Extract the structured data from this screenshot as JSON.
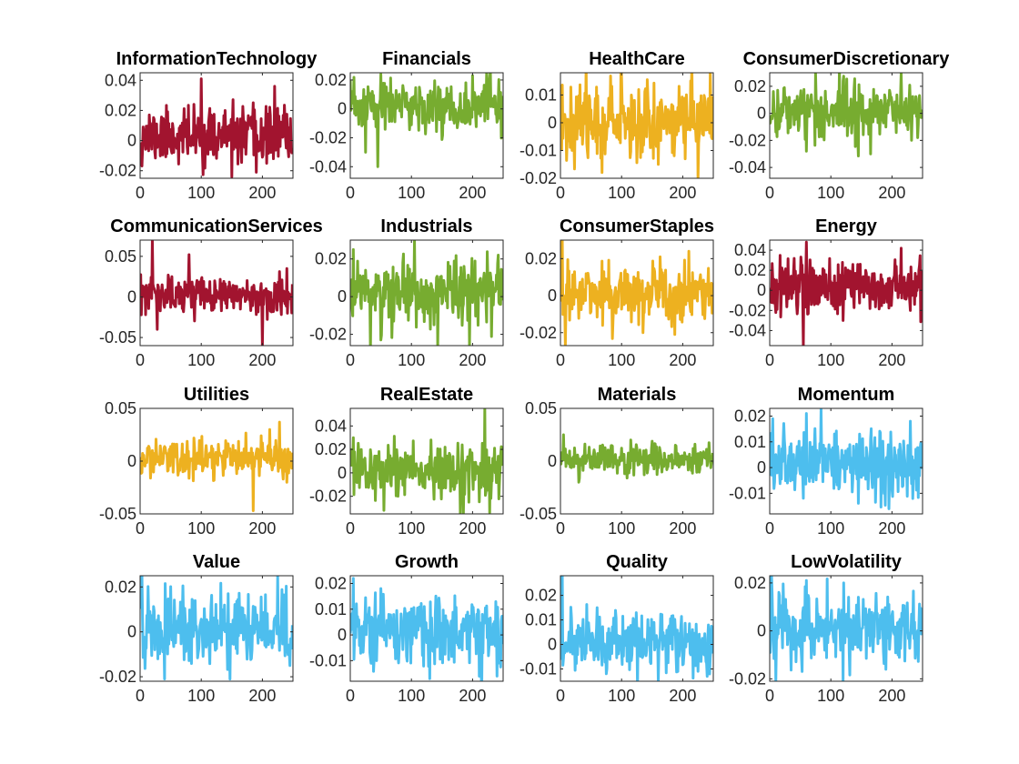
{
  "colors": {
    "red": "#A2142F",
    "green": "#77AC30",
    "yellow": "#EDB120",
    "blue": "#4DBEEE"
  },
  "chart_data": [
    {
      "type": "line",
      "title": "InformationTechnology",
      "color": "red",
      "xlim": [
        0,
        250
      ],
      "ylim": [
        -0.025,
        0.045
      ],
      "xticks": [
        0,
        100,
        200
      ],
      "yticks": [
        -0.02,
        0,
        0.02,
        0.04
      ],
      "ytick_labels": [
        "-0.02",
        "0",
        "0.02",
        "0.04"
      ],
      "n": 250,
      "mean": 0.003,
      "sd": 0.009,
      "seed": 11,
      "spikes": [
        [
          100,
          0.041
        ],
        [
          150,
          -0.024
        ],
        [
          220,
          0.036
        ],
        [
          190,
          -0.021
        ]
      ]
    },
    {
      "type": "line",
      "title": "Financials",
      "color": "green",
      "xlim": [
        0,
        250
      ],
      "ylim": [
        -0.048,
        0.025
      ],
      "xticks": [
        0,
        100,
        200
      ],
      "yticks": [
        -0.04,
        -0.02,
        0
      ],
      "ytick_labels": [
        "-0.04",
        "-0.02",
        "0"
      ],
      "extra_yticks": [
        0.02
      ],
      "extra_ytick_labels": [
        "0.02"
      ],
      "n": 250,
      "mean": 0.002,
      "sd": 0.009,
      "seed": 23,
      "spikes": [
        [
          45,
          -0.04
        ],
        [
          50,
          0.024
        ],
        [
          200,
          0.023
        ],
        [
          25,
          -0.03
        ]
      ]
    },
    {
      "type": "line",
      "title": "HealthCare",
      "color": "yellow",
      "xlim": [
        0,
        250
      ],
      "ylim": [
        -0.02,
        0.018
      ],
      "xticks": [
        0,
        100,
        200
      ],
      "yticks": [
        -0.02,
        -0.01,
        0,
        0.01
      ],
      "ytick_labels": [
        "-0.02",
        "-0.01",
        "0",
        "0.01"
      ],
      "n": 250,
      "mean": 0.001,
      "sd": 0.007,
      "seed": 37,
      "spikes": [
        [
          225,
          -0.02
        ],
        [
          245,
          0.018
        ],
        [
          100,
          0.016
        ],
        [
          160,
          -0.015
        ]
      ]
    },
    {
      "type": "line",
      "title": "ConsumerDiscretionary",
      "color": "green",
      "xlim": [
        0,
        250
      ],
      "ylim": [
        -0.048,
        0.03
      ],
      "xticks": [
        0,
        100,
        200
      ],
      "yticks": [
        -0.04,
        -0.02,
        0,
        0.02
      ],
      "ytick_labels": [
        "-0.04",
        "-0.02",
        "0",
        "0.02"
      ],
      "n": 250,
      "mean": 0.002,
      "sd": 0.01,
      "seed": 41,
      "spikes": [
        [
          215,
          0.03
        ],
        [
          165,
          -0.03
        ],
        [
          60,
          -0.028
        ],
        [
          120,
          0.024
        ]
      ]
    },
    {
      "type": "line",
      "title": "CommunicationServices",
      "color": "red",
      "xlim": [
        0,
        250
      ],
      "ylim": [
        -0.06,
        0.07
      ],
      "xticks": [
        0,
        100,
        200
      ],
      "yticks": [
        -0.05,
        0,
        0.05
      ],
      "ytick_labels": [
        "-0.05",
        "0",
        "0.05"
      ],
      "n": 250,
      "mean": 0.002,
      "sd": 0.011,
      "seed": 53,
      "spikes": [
        [
          20,
          0.07
        ],
        [
          80,
          0.052
        ],
        [
          200,
          -0.06
        ],
        [
          28,
          -0.04
        ],
        [
          240,
          0.035
        ]
      ]
    },
    {
      "type": "line",
      "title": "Industrials",
      "color": "green",
      "xlim": [
        0,
        250
      ],
      "ylim": [
        -0.026,
        0.03
      ],
      "xticks": [
        0,
        100,
        200
      ],
      "yticks": [
        -0.02,
        0,
        0.02
      ],
      "ytick_labels": [
        "-0.02",
        "0",
        "0.02"
      ],
      "n": 250,
      "mean": 0.002,
      "sd": 0.009,
      "seed": 61,
      "spikes": [
        [
          105,
          0.03
        ],
        [
          195,
          -0.026
        ],
        [
          50,
          -0.023
        ],
        [
          5,
          0.025
        ]
      ]
    },
    {
      "type": "line",
      "title": "ConsumerStaples",
      "color": "yellow",
      "xlim": [
        0,
        250
      ],
      "ylim": [
        -0.027,
        0.03
      ],
      "xticks": [
        0,
        100,
        200
      ],
      "yticks": [
        -0.02,
        0,
        0.02
      ],
      "ytick_labels": [
        "-0.02",
        "0",
        "0.02"
      ],
      "n": 250,
      "mean": 0.001,
      "sd": 0.008,
      "seed": 71,
      "spikes": [
        [
          3,
          0.03
        ],
        [
          8,
          -0.027
        ],
        [
          210,
          0.024
        ],
        [
          135,
          -0.02
        ]
      ]
    },
    {
      "type": "line",
      "title": "Energy",
      "color": "red",
      "xlim": [
        0,
        250
      ],
      "ylim": [
        -0.055,
        0.05
      ],
      "xticks": [
        0,
        100,
        200
      ],
      "yticks": [
        -0.04,
        -0.02,
        0,
        0.02,
        0.04
      ],
      "ytick_labels": [
        "-0.04",
        "-0.02",
        "0",
        "0.02",
        "0.04"
      ],
      "n": 250,
      "mean": 0.003,
      "sd": 0.014,
      "seed": 83,
      "spikes": [
        [
          55,
          -0.055
        ],
        [
          60,
          0.048
        ],
        [
          215,
          0.042
        ],
        [
          120,
          -0.03
        ]
      ]
    },
    {
      "type": "line",
      "title": "Utilities",
      "color": "yellow",
      "xlim": [
        0,
        250
      ],
      "ylim": [
        -0.05,
        0.05
      ],
      "xticks": [
        0,
        100,
        200
      ],
      "yticks": [
        -0.05,
        0,
        0.05
      ],
      "ytick_labels": [
        "-0.05",
        "0",
        "0.05"
      ],
      "n": 250,
      "mean": 0.002,
      "sd": 0.009,
      "seed": 97,
      "spikes": [
        [
          185,
          -0.047
        ],
        [
          228,
          0.037
        ],
        [
          212,
          0.03
        ],
        [
          240,
          -0.02
        ]
      ]
    },
    {
      "type": "line",
      "title": "RealEstate",
      "color": "green",
      "xlim": [
        0,
        250
      ],
      "ylim": [
        -0.035,
        0.055
      ],
      "xticks": [
        0,
        100,
        200
      ],
      "yticks": [
        -0.02,
        0,
        0.02,
        0.04
      ],
      "ytick_labels": [
        "-0.02",
        "0",
        "0.02",
        "0.04"
      ],
      "n": 250,
      "mean": 0.002,
      "sd": 0.012,
      "seed": 103,
      "spikes": [
        [
          220,
          0.055
        ],
        [
          180,
          -0.035
        ],
        [
          55,
          -0.032
        ],
        [
          5,
          0.03
        ]
      ]
    },
    {
      "type": "line",
      "title": "Materials",
      "color": "green",
      "xlim": [
        0,
        250
      ],
      "ylim": [
        -0.05,
        0.05
      ],
      "xticks": [
        0,
        100,
        200
      ],
      "yticks": [
        -0.05,
        0,
        0.05
      ],
      "ytick_labels": [
        "-0.05",
        "0",
        "0.05"
      ],
      "n": 250,
      "mean": 0.002,
      "sd": 0.007,
      "seed": 113,
      "spikes": [
        [
          5,
          0.025
        ],
        [
          30,
          -0.02
        ],
        [
          115,
          0.02
        ]
      ]
    },
    {
      "type": "line",
      "title": "Momentum",
      "color": "blue",
      "xlim": [
        0,
        250
      ],
      "ylim": [
        -0.018,
        0.023
      ],
      "xticks": [
        0,
        100,
        200
      ],
      "yticks": [
        -0.01,
        0,
        0.01,
        0.02
      ],
      "ytick_labels": [
        "-0.01",
        "0",
        "0.01",
        "0.02"
      ],
      "n": 250,
      "mean": 0.002,
      "sd": 0.007,
      "seed": 127,
      "spikes": [
        [
          5,
          0.019
        ],
        [
          60,
          0.021
        ],
        [
          230,
          0.018
        ],
        [
          195,
          -0.016
        ]
      ]
    },
    {
      "type": "line",
      "title": "Value",
      "color": "blue",
      "xlim": [
        0,
        250
      ],
      "ylim": [
        -0.022,
        0.025
      ],
      "xticks": [
        0,
        100,
        200
      ],
      "yticks": [
        -0.02,
        0,
        0.02
      ],
      "ytick_labels": [
        "-0.02",
        "0",
        "0.02"
      ],
      "n": 250,
      "mean": 0.001,
      "sd": 0.008,
      "seed": 131,
      "spikes": [
        [
          3,
          0.025
        ],
        [
          225,
          0.025
        ],
        [
          40,
          -0.021
        ],
        [
          245,
          -0.015
        ]
      ]
    },
    {
      "type": "line",
      "title": "Growth",
      "color": "blue",
      "xlim": [
        0,
        250
      ],
      "ylim": [
        -0.018,
        0.023
      ],
      "xticks": [
        0,
        100,
        200
      ],
      "yticks": [
        -0.01,
        0,
        0.01,
        0.02
      ],
      "ytick_labels": [
        "-0.01",
        "0",
        "0.01",
        "0.02"
      ],
      "n": 250,
      "mean": 0.002,
      "sd": 0.007,
      "seed": 139,
      "spikes": [
        [
          5,
          0.022
        ],
        [
          130,
          -0.017
        ],
        [
          50,
          0.018
        ],
        [
          240,
          -0.016
        ]
      ]
    },
    {
      "type": "line",
      "title": "Quality",
      "color": "blue",
      "xlim": [
        0,
        250
      ],
      "ylim": [
        -0.015,
        0.028
      ],
      "xticks": [
        0,
        100,
        200
      ],
      "yticks": [
        -0.01,
        0,
        0.01,
        0.02
      ],
      "ytick_labels": [
        "-0.01",
        "0",
        "0.01",
        "0.02"
      ],
      "n": 250,
      "mean": 0.001,
      "sd": 0.006,
      "seed": 149,
      "spikes": [
        [
          3,
          0.028
        ],
        [
          160,
          -0.015
        ],
        [
          240,
          -0.013
        ],
        [
          60,
          0.015
        ]
      ]
    },
    {
      "type": "line",
      "title": "LowVolatility",
      "color": "blue",
      "xlim": [
        0,
        250
      ],
      "ylim": [
        -0.021,
        0.023
      ],
      "xticks": [
        0,
        100,
        200
      ],
      "yticks": [
        -0.02,
        0,
        0.02
      ],
      "ytick_labels": [
        "-0.02",
        "0",
        "0.02"
      ],
      "n": 250,
      "mean": 0.001,
      "sd": 0.007,
      "seed": 151,
      "spikes": [
        [
          3,
          0.023
        ],
        [
          10,
          -0.021
        ],
        [
          60,
          0.021
        ],
        [
          190,
          -0.016
        ]
      ]
    }
  ]
}
